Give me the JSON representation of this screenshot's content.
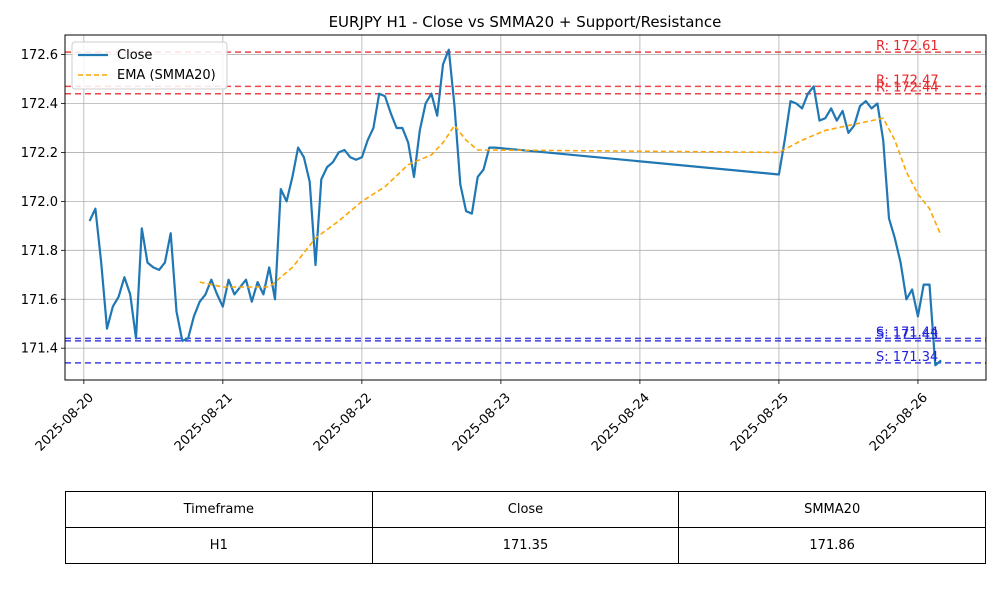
{
  "chart_data": {
    "type": "line",
    "title": "EURJPY H1 - Close vs SMMA20 + Support/Resistance",
    "xlabel": "",
    "ylabel": "",
    "x_ticks": [
      "2025-08-20",
      "2025-08-21",
      "2025-08-22",
      "2025-08-23",
      "2025-08-24",
      "2025-08-25",
      "2025-08-26"
    ],
    "xlim": [
      "2025-08-19T20:45",
      "2025-08-26T11:45"
    ],
    "ylim": [
      171.27,
      172.68
    ],
    "y_ticks": [
      "171.4",
      "171.6",
      "171.8",
      "172.0",
      "172.2",
      "172.4",
      "172.6"
    ],
    "grid": true,
    "legend_position": "top-left",
    "legend": [
      "Close",
      "EMA (SMMA20)"
    ],
    "colors": {
      "close": "#1f77b4",
      "smma": "#ffa500",
      "resistance": "#e8262a",
      "support": "#2222dd"
    },
    "series": [
      {
        "name": "Close",
        "x": [
          "2025-08-20T01:00",
          "2025-08-20T02:00",
          "2025-08-20T03:00",
          "2025-08-20T04:00",
          "2025-08-20T05:00",
          "2025-08-20T06:00",
          "2025-08-20T07:00",
          "2025-08-20T08:00",
          "2025-08-20T09:00",
          "2025-08-20T10:00",
          "2025-08-20T11:00",
          "2025-08-20T12:00",
          "2025-08-20T13:00",
          "2025-08-20T14:00",
          "2025-08-20T15:00",
          "2025-08-20T16:00",
          "2025-08-20T17:00",
          "2025-08-20T18:00",
          "2025-08-20T19:00",
          "2025-08-20T20:00",
          "2025-08-20T21:00",
          "2025-08-20T22:00",
          "2025-08-20T23:00",
          "2025-08-21T00:00",
          "2025-08-21T01:00",
          "2025-08-21T02:00",
          "2025-08-21T03:00",
          "2025-08-21T04:00",
          "2025-08-21T05:00",
          "2025-08-21T06:00",
          "2025-08-21T07:00",
          "2025-08-21T08:00",
          "2025-08-21T09:00",
          "2025-08-21T10:00",
          "2025-08-21T11:00",
          "2025-08-21T12:00",
          "2025-08-21T13:00",
          "2025-08-21T14:00",
          "2025-08-21T15:00",
          "2025-08-21T16:00",
          "2025-08-21T17:00",
          "2025-08-21T18:00",
          "2025-08-21T19:00",
          "2025-08-21T20:00",
          "2025-08-21T21:00",
          "2025-08-21T22:00",
          "2025-08-21T23:00",
          "2025-08-22T00:00",
          "2025-08-22T01:00",
          "2025-08-22T02:00",
          "2025-08-22T03:00",
          "2025-08-22T04:00",
          "2025-08-22T05:00",
          "2025-08-22T06:00",
          "2025-08-22T07:00",
          "2025-08-22T08:00",
          "2025-08-22T09:00",
          "2025-08-22T10:00",
          "2025-08-22T11:00",
          "2025-08-22T12:00",
          "2025-08-22T13:00",
          "2025-08-22T14:00",
          "2025-08-22T15:00",
          "2025-08-22T16:00",
          "2025-08-22T17:00",
          "2025-08-22T18:00",
          "2025-08-22T19:00",
          "2025-08-22T20:00",
          "2025-08-22T21:00",
          "2025-08-22T22:00",
          "2025-08-22T23:00",
          "2025-08-25T00:00",
          "2025-08-25T01:00",
          "2025-08-25T02:00",
          "2025-08-25T03:00",
          "2025-08-25T04:00",
          "2025-08-25T05:00",
          "2025-08-25T06:00",
          "2025-08-25T07:00",
          "2025-08-25T08:00",
          "2025-08-25T09:00",
          "2025-08-25T10:00",
          "2025-08-25T11:00",
          "2025-08-25T12:00",
          "2025-08-25T13:00",
          "2025-08-25T14:00",
          "2025-08-25T15:00",
          "2025-08-25T16:00",
          "2025-08-25T17:00",
          "2025-08-25T18:00",
          "2025-08-25T19:00",
          "2025-08-25T20:00",
          "2025-08-25T21:00",
          "2025-08-25T22:00",
          "2025-08-25T23:00",
          "2025-08-26T00:00",
          "2025-08-26T01:00",
          "2025-08-26T02:00",
          "2025-08-26T03:00",
          "2025-08-26T04:00"
        ],
        "values": [
          171.92,
          171.97,
          171.75,
          171.48,
          171.57,
          171.61,
          171.69,
          171.62,
          171.44,
          171.89,
          171.75,
          171.73,
          171.72,
          171.75,
          171.87,
          171.55,
          171.43,
          171.44,
          171.53,
          171.59,
          171.62,
          171.68,
          171.62,
          171.57,
          171.68,
          171.62,
          171.65,
          171.68,
          171.59,
          171.67,
          171.62,
          171.73,
          171.6,
          172.05,
          172.0,
          172.1,
          172.22,
          172.18,
          172.08,
          171.74,
          172.09,
          172.14,
          172.16,
          172.2,
          172.21,
          172.18,
          172.17,
          172.18,
          172.25,
          172.3,
          172.44,
          172.43,
          172.36,
          172.3,
          172.3,
          172.24,
          172.1,
          172.29,
          172.4,
          172.44,
          172.35,
          172.56,
          172.62,
          172.39,
          172.07,
          171.96,
          171.95,
          172.1,
          172.13,
          172.22,
          172.22,
          172.11,
          172.25,
          172.41,
          172.4,
          172.38,
          172.44,
          172.47,
          172.33,
          172.34,
          172.38,
          172.33,
          172.37,
          172.28,
          172.31,
          172.39,
          172.41,
          172.38,
          172.4,
          172.25,
          171.93,
          171.85,
          171.75,
          171.6,
          171.64,
          171.53,
          171.66,
          171.66,
          171.33,
          171.35
        ]
      },
      {
        "name": "EMA (SMMA20)",
        "x": [
          "2025-08-20T20:00",
          "2025-08-21T00:00",
          "2025-08-21T04:00",
          "2025-08-21T08:00",
          "2025-08-21T12:00",
          "2025-08-21T16:00",
          "2025-08-21T20:00",
          "2025-08-22T00:00",
          "2025-08-22T04:00",
          "2025-08-22T08:00",
          "2025-08-22T12:00",
          "2025-08-22T14:00",
          "2025-08-22T16:00",
          "2025-08-22T18:00",
          "2025-08-22T20:00",
          "2025-08-22T23:00",
          "2025-08-25T00:00",
          "2025-08-25T04:00",
          "2025-08-25T08:00",
          "2025-08-25T12:00",
          "2025-08-25T16:00",
          "2025-08-25T18:00",
          "2025-08-25T20:00",
          "2025-08-25T22:00",
          "2025-08-26T00:00",
          "2025-08-26T02:00",
          "2025-08-26T04:00"
        ],
        "values": [
          171.67,
          171.65,
          171.65,
          171.65,
          171.73,
          171.85,
          171.92,
          172.0,
          172.06,
          172.15,
          172.19,
          172.24,
          172.31,
          172.25,
          172.21,
          172.21,
          172.2,
          172.25,
          172.29,
          172.31,
          172.33,
          172.34,
          172.25,
          172.12,
          172.03,
          171.97,
          171.86
        ]
      }
    ],
    "levels": [
      {
        "kind": "resistance",
        "value": 172.61,
        "label": "R: 172.61"
      },
      {
        "kind": "resistance",
        "value": 172.47,
        "label": "R: 172.47"
      },
      {
        "kind": "resistance",
        "value": 172.44,
        "label": "R: 172.44"
      },
      {
        "kind": "support",
        "value": 171.44,
        "label": "S: 171.44"
      },
      {
        "kind": "support",
        "value": 171.43,
        "label": "S: 171.43"
      },
      {
        "kind": "support",
        "value": 171.34,
        "label": "S: 171.34"
      }
    ]
  },
  "table": {
    "headers": [
      "Timeframe",
      "Close",
      "SMMA20"
    ],
    "rows": [
      [
        "H1",
        "171.35",
        "171.86"
      ]
    ]
  }
}
